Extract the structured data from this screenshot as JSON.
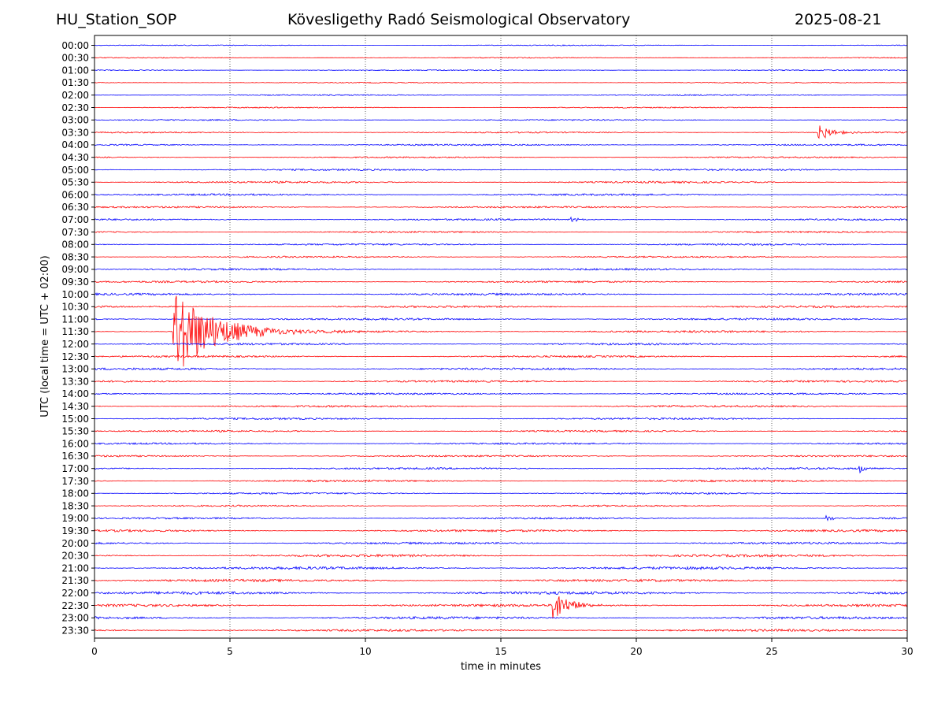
{
  "header": {
    "station": "HU_Station_SOP",
    "observatory": "Kövesligethy Radó Seismological Observatory",
    "date": "2025-08-21"
  },
  "chart_data": {
    "type": "line",
    "title": "Kövesligethy Radó Seismological Observatory",
    "xlabel": "time in minutes",
    "ylabel": "UTC (local time = UTC + 02:00)",
    "xlim": [
      0,
      30
    ],
    "x_ticks": [
      "0",
      "5",
      "10",
      "15",
      "20",
      "25",
      "30"
    ],
    "grid": "vertical dotted at each x tick",
    "colors": {
      "even_rows": "#0000ff",
      "odd_rows": "#ff0000",
      "highlight": "#ff00ff"
    },
    "rows": [
      "00:00",
      "00:30",
      "01:00",
      "01:30",
      "02:00",
      "02:30",
      "03:00",
      "03:30",
      "04:00",
      "04:30",
      "05:00",
      "05:30",
      "06:00",
      "06:30",
      "07:00",
      "07:30",
      "08:00",
      "08:30",
      "09:00",
      "09:30",
      "10:00",
      "10:30",
      "11:00",
      "11:30",
      "12:00",
      "12:30",
      "13:00",
      "13:30",
      "14:00",
      "14:30",
      "15:00",
      "15:30",
      "16:00",
      "16:30",
      "17:00",
      "17:30",
      "18:00",
      "18:30",
      "19:00",
      "19:30",
      "20:00",
      "20:30",
      "21:00",
      "21:30",
      "22:00",
      "22:30",
      "23:00",
      "23:30"
    ],
    "noise_level": [
      0.6,
      0.6,
      0.7,
      0.6,
      0.8,
      0.7,
      0.8,
      0.9,
      1.0,
      0.9,
      1.1,
      1.2,
      1.2,
      1.1,
      1.1,
      1.0,
      1.1,
      1.0,
      1.2,
      1.2,
      1.3,
      1.3,
      1.3,
      1.4,
      1.3,
      1.2,
      1.4,
      1.2,
      1.1,
      1.2,
      1.2,
      1.1,
      1.1,
      1.1,
      1.2,
      1.2,
      1.1,
      1.0,
      1.1,
      1.4,
      1.3,
      1.6,
      1.7,
      1.6,
      1.8,
      1.6,
      1.6,
      1.4
    ],
    "events": [
      {
        "row": "03:30",
        "start_min": 26.7,
        "amplitude": 12,
        "duration_min": 1.8
      },
      {
        "row": "11:30",
        "start_min": 2.9,
        "amplitude": 60,
        "duration_min": 5.5
      },
      {
        "row": "22:30",
        "start_min": 16.9,
        "amplitude": 26,
        "duration_min": 2.0
      },
      {
        "row": "17:00",
        "start_min": 28.2,
        "amplitude": 7,
        "duration_min": 0.9
      },
      {
        "row": "19:00",
        "start_min": 27.0,
        "amplitude": 5,
        "duration_min": 1.0
      },
      {
        "row": "07:00",
        "start_min": 17.5,
        "amplitude": 4,
        "duration_min": 1.2
      }
    ]
  }
}
